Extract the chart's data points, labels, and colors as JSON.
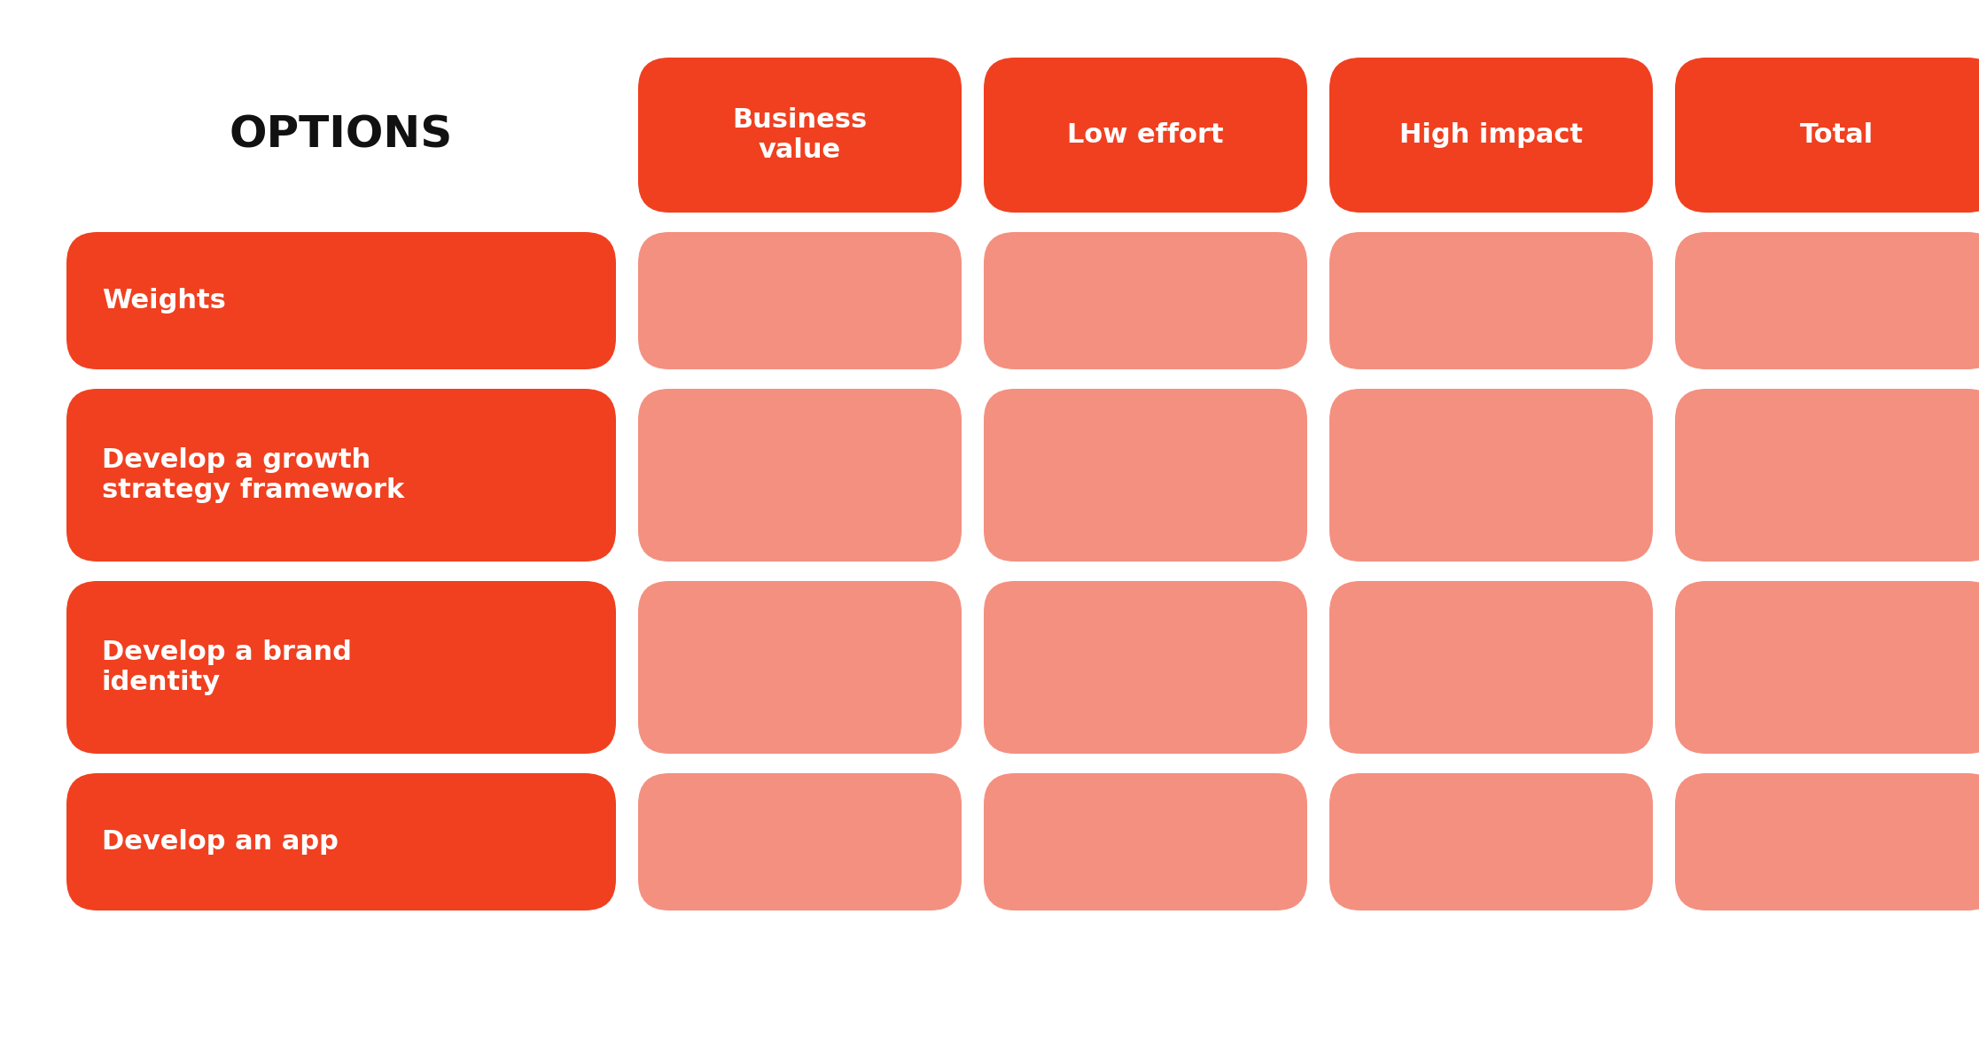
{
  "title": "OPTIONS",
  "header_labels": [
    "Business\nvalue",
    "Low effort",
    "High impact",
    "Total"
  ],
  "row_labels": [
    "Weights",
    "Develop a growth\nstrategy framework",
    "Develop a brand\nidentity",
    "Develop an app"
  ],
  "dark_red_color": "#F04020",
  "light_red_color": "#F49080",
  "bg_color": "#FFFFFF",
  "text_color_white": "#FFFFFF",
  "text_color_black": "#111111",
  "fig_width": 22.33,
  "fig_height": 11.81,
  "dpi": 100
}
